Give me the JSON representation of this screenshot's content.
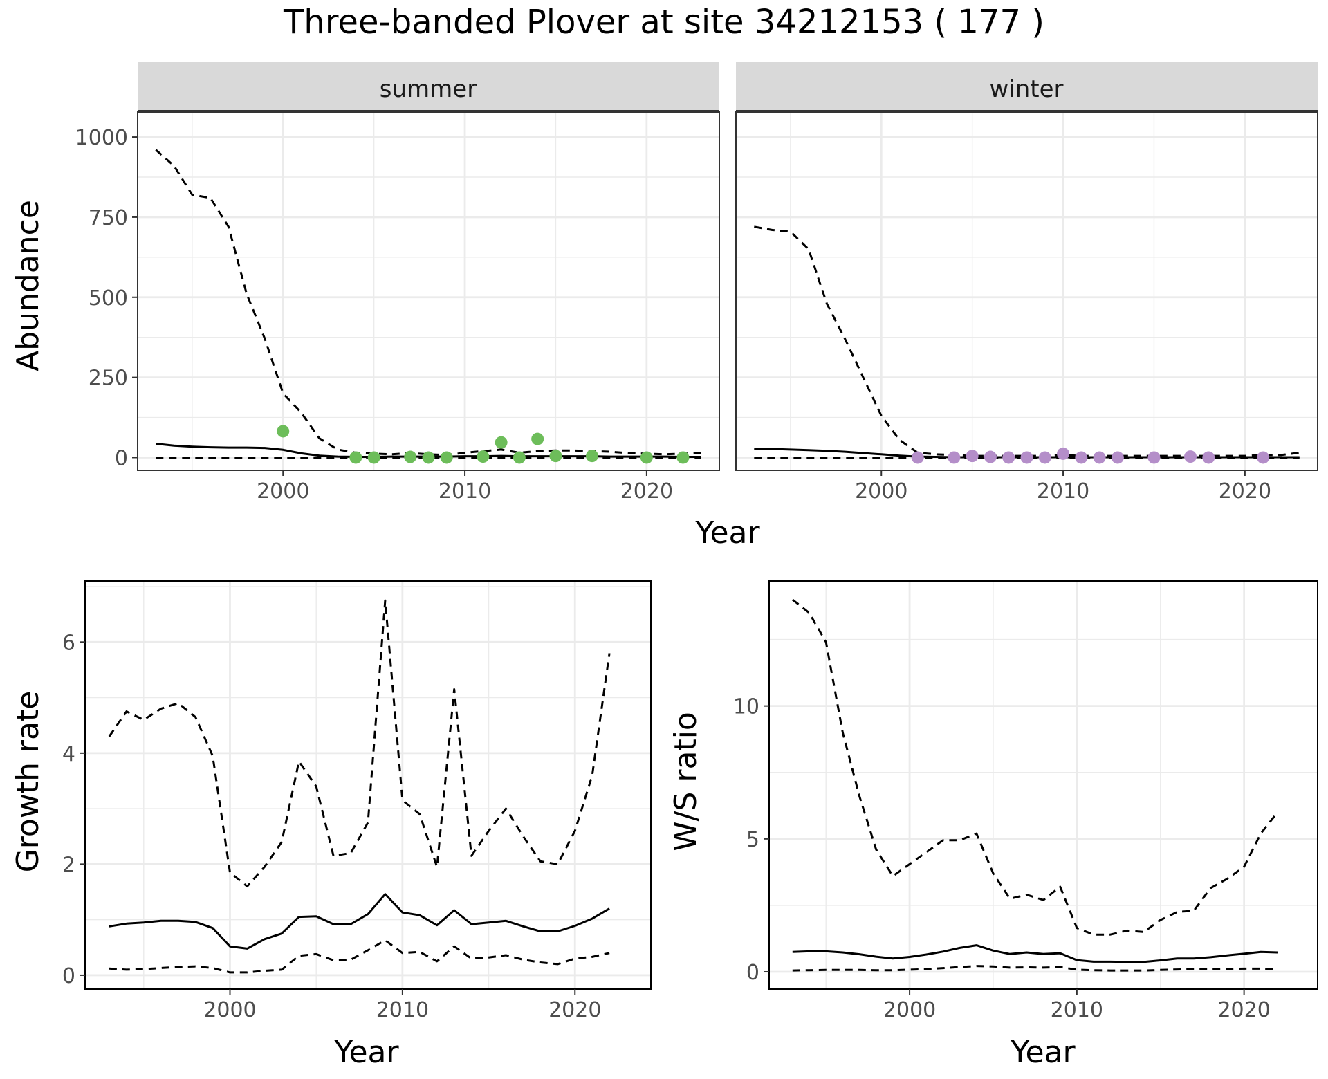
{
  "title": "Three-banded Plover at site 34212153 ( 177 )",
  "colors": {
    "summer_points": "#6dbd5a",
    "winter_points": "#b48ec9",
    "lines": "#000000",
    "strip_background": "#d9d9d9",
    "grid_major": "#ebebeb",
    "panel_border": "#333333"
  },
  "chart_data": [
    {
      "id": "abundance",
      "type": "line",
      "facets": [
        "summer",
        "winter"
      ],
      "xlabel": "Year",
      "ylabel": "Abundance",
      "xlim": [
        1992,
        2024
      ],
      "ylim": [
        -40,
        1080
      ],
      "xticks": [
        2000,
        2010,
        2020
      ],
      "yticks": [
        0,
        250,
        500,
        750,
        1000
      ],
      "ytick_labels": [
        "0",
        "250",
        "500",
        "750",
        "1000"
      ],
      "panels": [
        {
          "facet": "summer",
          "estimate": {
            "x": [
              1993,
              1994,
              1995,
              1996,
              1997,
              1998,
              1999,
              2000,
              2001,
              2002,
              2003,
              2004,
              2005,
              2006,
              2007,
              2008,
              2009,
              2010,
              2011,
              2012,
              2013,
              2014,
              2015,
              2016,
              2017,
              2018,
              2019,
              2020,
              2021,
              2022,
              2023
            ],
            "y": [
              43,
              37,
              34,
              32,
              31,
              31,
              30,
              24,
              13,
              6,
              3,
              2,
              2,
              3,
              3,
              3,
              3,
              4,
              4,
              5,
              4,
              4,
              4,
              4,
              4,
              3,
              3,
              3,
              3,
              2,
              2
            ]
          },
          "upper": {
            "x": [
              1993,
              1994,
              1995,
              1996,
              1997,
              1998,
              1999,
              2000,
              2001,
              2002,
              2003,
              2004,
              2005,
              2006,
              2007,
              2008,
              2009,
              2010,
              2011,
              2012,
              2013,
              2014,
              2015,
              2016,
              2017,
              2018,
              2019,
              2020,
              2021,
              2022,
              2023
            ],
            "y": [
              960,
              910,
              820,
              810,
              720,
              510,
              370,
              200,
              140,
              60,
              25,
              15,
              12,
              10,
              14,
              10,
              8,
              15,
              20,
              25,
              15,
              20,
              22,
              22,
              20,
              18,
              14,
              12,
              10,
              12,
              14
            ]
          },
          "lower": {
            "x": [
              1993,
              2023
            ],
            "y": [
              0,
              0
            ]
          },
          "counts": {
            "x": [
              2000,
              2004,
              2005,
              2007,
              2008,
              2009,
              2011,
              2012,
              2013,
              2014,
              2015,
              2017,
              2020,
              2022
            ],
            "y": [
              82,
              0,
              0,
              2,
              0,
              0,
              3,
              47,
              0,
              58,
              5,
              5,
              0,
              0
            ]
          }
        },
        {
          "facet": "winter",
          "estimate": {
            "x": [
              1993,
              1994,
              1995,
              1996,
              1997,
              1998,
              1999,
              2000,
              2001,
              2002,
              2003,
              2004,
              2005,
              2006,
              2007,
              2008,
              2009,
              2010,
              2011,
              2012,
              2013,
              2014,
              2015,
              2016,
              2017,
              2018,
              2019,
              2020,
              2021,
              2022,
              2023
            ],
            "y": [
              28,
              27,
              25,
              23,
              21,
              18,
              14,
              10,
              6,
              3,
              2,
              1,
              1,
              1,
              1,
              1,
              1,
              1,
              1,
              1,
              1,
              1,
              1,
              1,
              1,
              1,
              1,
              1,
              1,
              1,
              1
            ]
          },
          "upper": {
            "x": [
              1993,
              1994,
              1995,
              1996,
              1997,
              1998,
              1999,
              2000,
              2001,
              2002,
              2003,
              2004,
              2005,
              2006,
              2007,
              2008,
              2009,
              2010,
              2011,
              2012,
              2013,
              2014,
              2015,
              2016,
              2017,
              2018,
              2019,
              2020,
              2021,
              2022,
              2023
            ],
            "y": [
              720,
              710,
              705,
              650,
              480,
              370,
              250,
              130,
              55,
              15,
              10,
              8,
              5,
              5,
              5,
              5,
              5,
              8,
              5,
              5,
              5,
              5,
              5,
              5,
              5,
              5,
              5,
              5,
              8,
              8,
              15
            ]
          },
          "lower": {
            "x": [
              1993,
              2023
            ],
            "y": [
              0,
              0
            ]
          },
          "counts": {
            "x": [
              2002,
              2004,
              2005,
              2006,
              2007,
              2008,
              2009,
              2010,
              2011,
              2012,
              2013,
              2015,
              2017,
              2018,
              2021
            ],
            "y": [
              0,
              0,
              5,
              2,
              0,
              0,
              0,
              12,
              0,
              0,
              0,
              0,
              3,
              0,
              0
            ]
          }
        }
      ]
    },
    {
      "id": "growth",
      "type": "line",
      "xlabel": "Year",
      "ylabel": "Growth rate",
      "xlim": [
        1991.6,
        2024.4
      ],
      "ylim": [
        -0.25,
        7.1
      ],
      "xticks": [
        2000,
        2010,
        2020
      ],
      "yticks": [
        0,
        2,
        4,
        6
      ],
      "ytick_labels": [
        "0",
        "2",
        "4",
        "6"
      ],
      "estimate": {
        "x": [
          1993,
          1994,
          1995,
          1996,
          1997,
          1998,
          1999,
          2000,
          2001,
          2002,
          2003,
          2004,
          2005,
          2006,
          2007,
          2008,
          2009,
          2010,
          2011,
          2012,
          2013,
          2014,
          2015,
          2016,
          2017,
          2018,
          2019,
          2020,
          2021,
          2022
        ],
        "y": [
          0.88,
          0.93,
          0.95,
          0.98,
          0.98,
          0.96,
          0.85,
          0.52,
          0.48,
          0.65,
          0.75,
          1.05,
          1.06,
          0.92,
          0.92,
          1.1,
          1.46,
          1.13,
          1.08,
          0.9,
          1.17,
          0.92,
          0.95,
          0.98,
          0.88,
          0.79,
          0.79,
          0.89,
          1.02,
          1.2
        ]
      },
      "upper": {
        "x": [
          1993,
          1994,
          1995,
          1996,
          1997,
          1998,
          1999,
          2000,
          2001,
          2002,
          2003,
          2004,
          2005,
          2006,
          2007,
          2008,
          2009,
          2010,
          2011,
          2012,
          2013,
          2014,
          2015,
          2016,
          2017,
          2018,
          2019,
          2020,
          2021,
          2022
        ],
        "y": [
          4.3,
          4.75,
          4.6,
          4.8,
          4.9,
          4.65,
          3.95,
          1.85,
          1.6,
          1.95,
          2.4,
          3.85,
          3.4,
          2.15,
          2.2,
          2.75,
          6.75,
          3.15,
          2.9,
          1.95,
          5.15,
          2.15,
          2.6,
          3.0,
          2.5,
          2.05,
          2.0,
          2.6,
          3.6,
          5.8
        ]
      },
      "lower": {
        "x": [
          1993,
          1994,
          1995,
          1996,
          1997,
          1998,
          1999,
          2000,
          2001,
          2002,
          2003,
          2004,
          2005,
          2006,
          2007,
          2008,
          2009,
          2010,
          2011,
          2012,
          2013,
          2014,
          2015,
          2016,
          2017,
          2018,
          2019,
          2020,
          2021,
          2022
        ],
        "y": [
          0.12,
          0.1,
          0.11,
          0.13,
          0.15,
          0.16,
          0.13,
          0.05,
          0.05,
          0.08,
          0.1,
          0.35,
          0.38,
          0.27,
          0.28,
          0.45,
          0.63,
          0.4,
          0.42,
          0.25,
          0.52,
          0.3,
          0.32,
          0.36,
          0.28,
          0.23,
          0.2,
          0.3,
          0.33,
          0.4
        ]
      }
    },
    {
      "id": "ws_ratio",
      "type": "line",
      "xlabel": "Year",
      "ylabel": "W/S ratio",
      "xlim": [
        1991.6,
        2024.4
      ],
      "ylim": [
        -0.65,
        14.7
      ],
      "xticks": [
        2000,
        2010,
        2020
      ],
      "yticks": [
        0,
        5,
        10
      ],
      "ytick_labels": [
        "0",
        "5",
        "10"
      ],
      "estimate": {
        "x": [
          1993,
          1994,
          1995,
          1996,
          1997,
          1998,
          1999,
          2000,
          2001,
          2002,
          2003,
          2004,
          2005,
          2006,
          2007,
          2008,
          2009,
          2010,
          2011,
          2012,
          2013,
          2014,
          2015,
          2016,
          2017,
          2018,
          2019,
          2020,
          2021,
          2022
        ],
        "y": [
          0.75,
          0.77,
          0.77,
          0.73,
          0.66,
          0.57,
          0.5,
          0.56,
          0.65,
          0.76,
          0.9,
          1.0,
          0.8,
          0.67,
          0.73,
          0.67,
          0.7,
          0.44,
          0.38,
          0.38,
          0.37,
          0.37,
          0.43,
          0.5,
          0.5,
          0.55,
          0.62,
          0.68,
          0.75,
          0.73
        ]
      },
      "upper": {
        "x": [
          1993,
          1994,
          1995,
          1996,
          1997,
          1998,
          1999,
          2000,
          2001,
          2002,
          2003,
          2004,
          2005,
          2006,
          2007,
          2008,
          2009,
          2010,
          2011,
          2012,
          2013,
          2014,
          2015,
          2016,
          2017,
          2018,
          2019,
          2020,
          2021,
          2022
        ],
        "y": [
          14.0,
          13.5,
          12.4,
          9.0,
          6.6,
          4.6,
          3.6,
          4.05,
          4.5,
          4.95,
          4.95,
          5.2,
          3.7,
          2.75,
          2.9,
          2.7,
          3.2,
          1.65,
          1.4,
          1.4,
          1.55,
          1.5,
          1.95,
          2.25,
          2.3,
          3.15,
          3.5,
          3.95,
          5.2,
          6.0
        ]
      },
      "lower": {
        "x": [
          1993,
          1994,
          1995,
          1996,
          1997,
          1998,
          1999,
          2000,
          2001,
          2002,
          2003,
          2004,
          2005,
          2006,
          2007,
          2008,
          2009,
          2010,
          2011,
          2012,
          2013,
          2014,
          2015,
          2016,
          2017,
          2018,
          2019,
          2020,
          2021,
          2022
        ],
        "y": [
          0.05,
          0.06,
          0.07,
          0.07,
          0.07,
          0.06,
          0.06,
          0.08,
          0.1,
          0.14,
          0.18,
          0.22,
          0.2,
          0.16,
          0.17,
          0.16,
          0.18,
          0.08,
          0.06,
          0.05,
          0.05,
          0.05,
          0.07,
          0.09,
          0.1,
          0.1,
          0.11,
          0.12,
          0.12,
          0.11
        ]
      }
    }
  ]
}
